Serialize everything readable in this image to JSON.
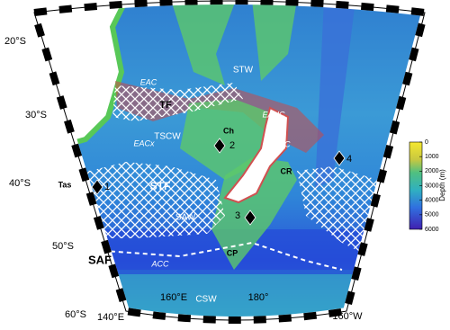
{
  "map": {
    "latitude_labels": [
      "20°S",
      "30°S",
      "40°S",
      "50°S",
      "60°S"
    ],
    "longitude_labels": [
      "140°E",
      "160°E",
      "180°",
      "160°W"
    ],
    "region_labels": [
      "STW",
      "EAC",
      "EAUC",
      "TF",
      "Ch",
      "2",
      "TSCW",
      "EACx",
      "ECC",
      "4",
      "Tas",
      "1",
      "STF",
      "CR",
      "SAW",
      "3",
      "CP",
      "SAF",
      "ACC",
      "CSW"
    ],
    "colorbar": {
      "title": "Depth (m)",
      "lim": [
        0,
        6000
      ],
      "ticks": [
        0,
        1000,
        2000,
        3000,
        4000,
        5000,
        6000
      ]
    }
  }
}
